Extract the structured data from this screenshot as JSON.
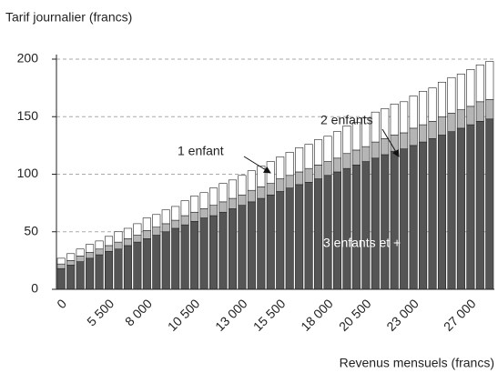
{
  "chart_data": {
    "type": "stacked_bar",
    "y_axis_label": "Tarif journalier (francs)",
    "x_axis_label": "Revenus mensuels (francs)",
    "categories": [
      "0",
      null,
      null,
      null,
      null,
      "5 500",
      null,
      null,
      null,
      "8 000",
      null,
      null,
      null,
      null,
      "10 500",
      null,
      null,
      null,
      null,
      "13 000",
      null,
      null,
      null,
      "15 500",
      null,
      null,
      null,
      null,
      "18 000",
      null,
      null,
      null,
      "20 500",
      null,
      null,
      null,
      null,
      "23 000",
      null,
      null,
      null,
      null,
      null,
      "27 000",
      null,
      null
    ],
    "series": [
      {
        "name": "3 enfants et +",
        "color": "#555555",
        "values": [
          18,
          21,
          24,
          27,
          30,
          33,
          35,
          38,
          41,
          44,
          47,
          50,
          53,
          56,
          59,
          62,
          64,
          67,
          70,
          73,
          76,
          79,
          82,
          85,
          88,
          91,
          93,
          96,
          99,
          102,
          105,
          108,
          111,
          114,
          117,
          120,
          122,
          125,
          128,
          131,
          134,
          137,
          140,
          143,
          146,
          148
        ]
      },
      {
        "name": "2 enfants",
        "color": "#b5b5b5",
        "values": [
          4,
          4,
          5,
          5,
          5,
          5,
          6,
          6,
          6,
          7,
          7,
          7,
          7,
          8,
          8,
          8,
          9,
          9,
          9,
          9,
          10,
          10,
          10,
          11,
          11,
          11,
          12,
          12,
          12,
          12,
          13,
          13,
          13,
          14,
          14,
          14,
          14,
          15,
          15,
          15,
          16,
          16,
          16,
          16,
          17,
          17
        ]
      },
      {
        "name": "1 enfant",
        "color": "#ffffff",
        "values": [
          5,
          6,
          6,
          7,
          7,
          8,
          9,
          9,
          10,
          11,
          11,
          12,
          12,
          13,
          14,
          14,
          15,
          16,
          16,
          17,
          17,
          18,
          19,
          19,
          20,
          21,
          21,
          22,
          22,
          23,
          24,
          24,
          25,
          26,
          26,
          27,
          27,
          28,
          29,
          29,
          30,
          31,
          31,
          32,
          32,
          33
        ]
      }
    ],
    "ylim": [
      0,
      200
    ],
    "yticks": [
      0,
      50,
      100,
      150,
      200
    ],
    "grid": true
  }
}
